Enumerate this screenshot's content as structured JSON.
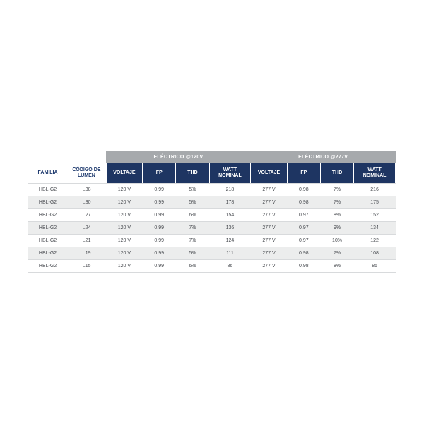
{
  "headers": {
    "familia": "FAMILIA",
    "codigo": "CÓDIGO DE LUMEN",
    "group120": "ELÉCTRICO @120V",
    "group277": "ELÉCTRICO @277V",
    "voltaje": "VOLTAJE",
    "fp": "FP",
    "thd": "THD",
    "watt": "WATT NOMINAL"
  },
  "colors": {
    "group_bg": "#a6a9ac",
    "dark_header_bg": "#1e3562",
    "light_header_text": "#1e3a6e",
    "row_alt_bg": "#eceded",
    "border": "#d8dadc",
    "body_text": "#4a4d52"
  },
  "rows": [
    {
      "familia": "HBL-G2",
      "codigo": "L38",
      "v120": "120 V",
      "fp120": "0.99",
      "thd120": "5%",
      "w120": "218",
      "v277": "277 V",
      "fp277": "0.98",
      "thd277": "7%",
      "w277": "216"
    },
    {
      "familia": "HBL-G2",
      "codigo": "L30",
      "v120": "120 V",
      "fp120": "0.99",
      "thd120": "5%",
      "w120": "178",
      "v277": "277 V",
      "fp277": "0.98",
      "thd277": "7%",
      "w277": "175"
    },
    {
      "familia": "HBL-G2",
      "codigo": "L27",
      "v120": "120 V",
      "fp120": "0.99",
      "thd120": "6%",
      "w120": "154",
      "v277": "277 V",
      "fp277": "0.97",
      "thd277": "8%",
      "w277": "152"
    },
    {
      "familia": "HBL-G2",
      "codigo": "L24",
      "v120": "120 V",
      "fp120": "0.99",
      "thd120": "7%",
      "w120": "136",
      "v277": "277 V",
      "fp277": "0.97",
      "thd277": "9%",
      "w277": "134"
    },
    {
      "familia": "HBL-G2",
      "codigo": "L21",
      "v120": "120 V",
      "fp120": "0.99",
      "thd120": "7%",
      "w120": "124",
      "v277": "277 V",
      "fp277": "0.97",
      "thd277": "10%",
      "w277": "122"
    },
    {
      "familia": "HBL-G2",
      "codigo": "L19",
      "v120": "120 V",
      "fp120": "0.99",
      "thd120": "5%",
      "w120": "111",
      "v277": "277 V",
      "fp277": "0.98",
      "thd277": "7%",
      "w277": "108"
    },
    {
      "familia": "HBL-G2",
      "codigo": "L15",
      "v120": "120 V",
      "fp120": "0.99",
      "thd120": "6%",
      "w120": "86",
      "v277": "277 V",
      "fp277": "0.98",
      "thd277": "8%",
      "w277": "85"
    }
  ]
}
